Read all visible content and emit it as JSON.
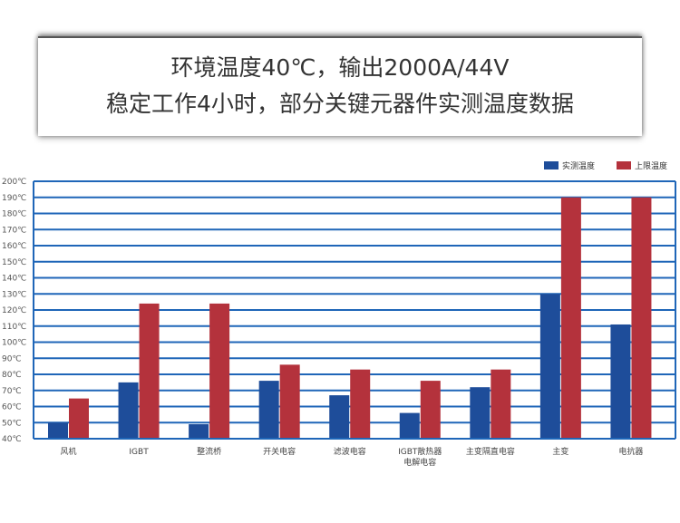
{
  "title": {
    "line1": "环境温度40℃，输出2000A/44V",
    "line2": "稳定工作4小时，部分关键元器件实测温度数据"
  },
  "colors": {
    "measured": "#1e4d9a",
    "limit": "#b4323c",
    "grid": "#1f66b8"
  },
  "chart_data": {
    "type": "bar",
    "categories": [
      "风机",
      "IGBT",
      "整流桥",
      "开关电容",
      "滤波电容",
      "IGBT散热器\n电解电容",
      "主变隔直电容",
      "主变",
      "电抗器"
    ],
    "series": [
      {
        "name": "实测温度",
        "values": [
          50,
          75,
          49,
          76,
          67,
          56,
          72,
          130,
          111
        ]
      },
      {
        "name": "上限温度",
        "values": [
          65,
          124,
          124,
          86,
          83,
          76,
          83,
          190,
          190
        ]
      }
    ],
    "yticks": [
      "40℃",
      "50℃",
      "60℃",
      "70℃",
      "80℃",
      "90℃",
      "100℃",
      "110℃",
      "120℃",
      "130℃",
      "140℃",
      "150℃",
      "160℃",
      "170℃",
      "180℃",
      "190℃",
      "200℃"
    ],
    "ylim": [
      40,
      200
    ],
    "legend": "top-right",
    "grid": true
  }
}
